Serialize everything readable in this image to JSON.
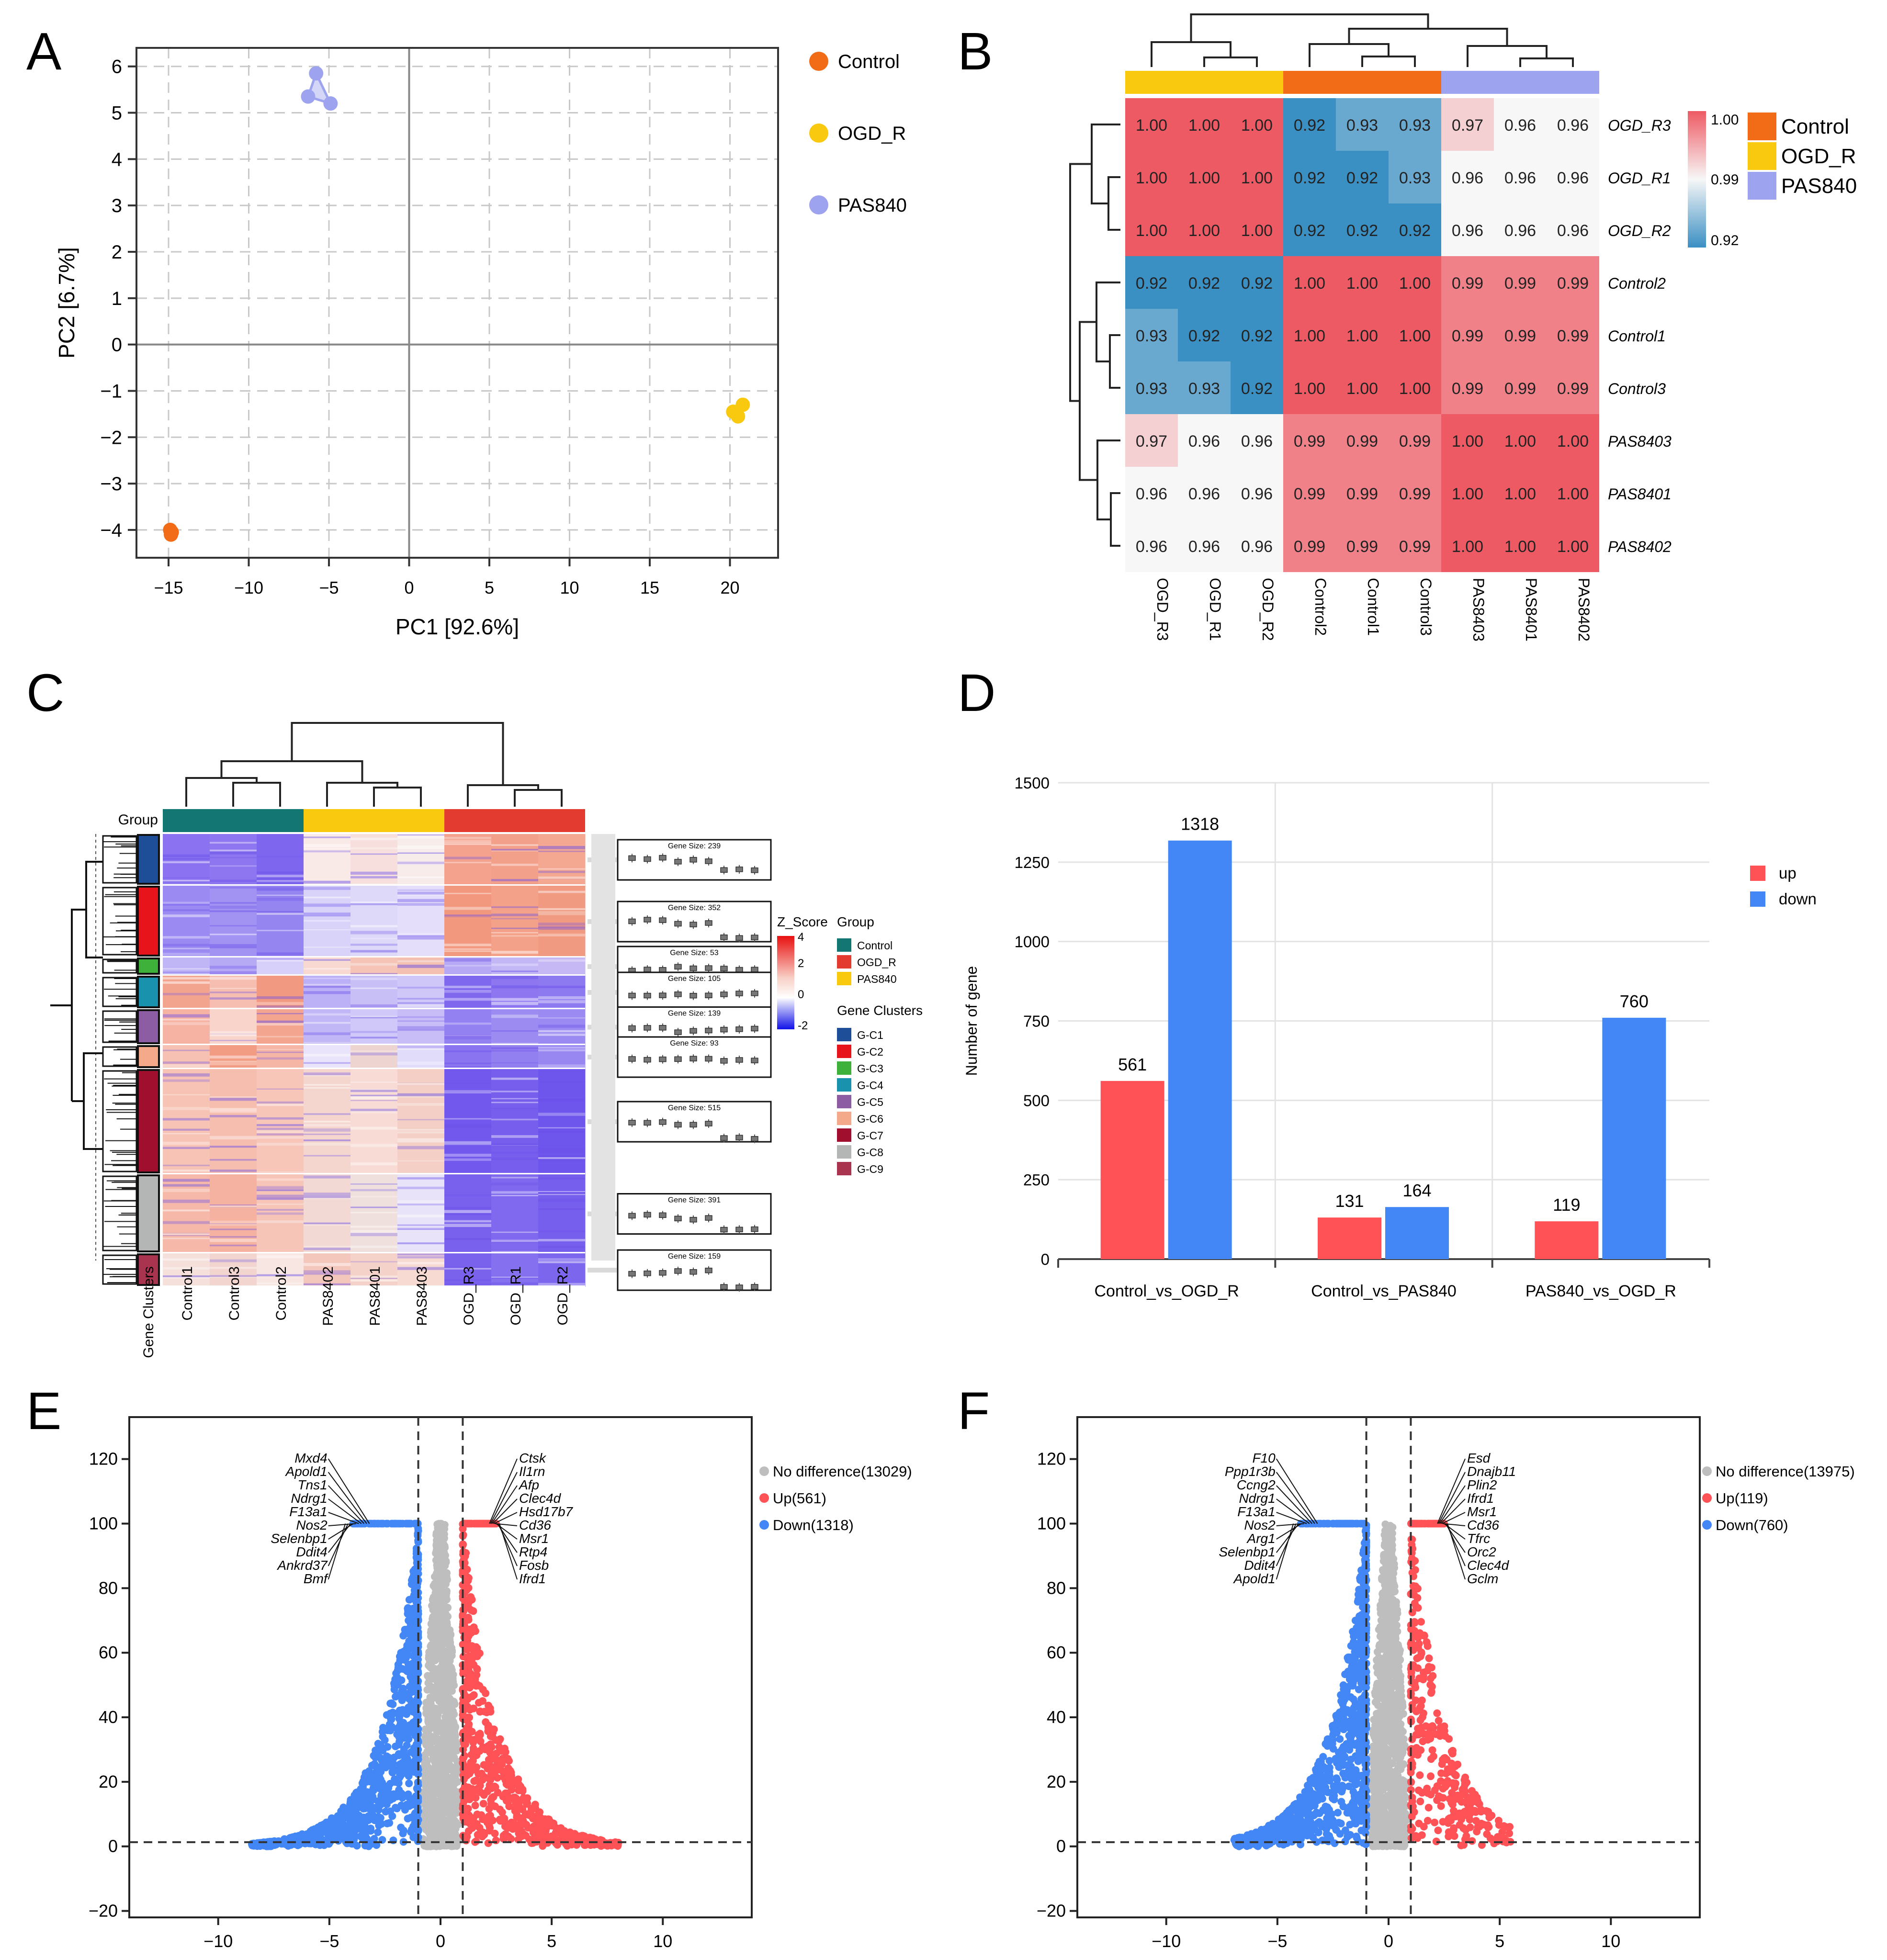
{
  "colors": {
    "control": "#F26B16",
    "ogd_r": "#F9C910",
    "pas840": "#9DA3EE",
    "heat_high": "#EE5A63",
    "heat_mid": "#F7F7F7",
    "heat_low": "#3A8FC3",
    "up": "#FF5256",
    "down": "#4287F5",
    "nodiff": "#BEBEBE",
    "grid": "#C8C8C8"
  },
  "panels": {
    "A": "A",
    "B": "B",
    "C": "C",
    "D": "D",
    "E": "E",
    "F": "F"
  },
  "chart_data": [
    {
      "id": "A",
      "type": "scatter",
      "xlabel": "PC1 [92.6%]",
      "ylabel": "PC2 [6.7%]",
      "xlim": [
        -17,
        23
      ],
      "ylim": [
        -4.6,
        6.4
      ],
      "xticks": [
        -15,
        -10,
        -5,
        0,
        5,
        10,
        15,
        20
      ],
      "yticks": [
        -4,
        -3,
        -2,
        -1,
        0,
        1,
        2,
        3,
        4,
        5,
        6
      ],
      "legend": [
        {
          "label": "Control",
          "color": "#F26B16"
        },
        {
          "label": "OGD_R",
          "color": "#F9C910"
        },
        {
          "label": "PAS840",
          "color": "#9DA3EE"
        }
      ],
      "groups": [
        {
          "name": "Control",
          "color": "#F26B16",
          "points": [
            [
              -14.9,
              -4.0
            ],
            [
              -14.8,
              -4.05
            ],
            [
              -14.85,
              -4.1
            ]
          ]
        },
        {
          "name": "OGD_R",
          "color": "#F9C910",
          "points": [
            [
              20.8,
              -1.3
            ],
            [
              20.2,
              -1.45
            ],
            [
              20.5,
              -1.55
            ]
          ]
        },
        {
          "name": "PAS840",
          "color": "#9DA3EE",
          "points": [
            [
              -5.8,
              5.85
            ],
            [
              -6.3,
              5.35
            ],
            [
              -4.9,
              5.2
            ]
          ]
        }
      ]
    },
    {
      "id": "B",
      "type": "heatmap",
      "rows": [
        "OGD_R3",
        "OGD_R1",
        "OGD_R2",
        "Control2",
        "Control1",
        "Control3",
        "PAS8403",
        "PAS8401",
        "PAS8402"
      ],
      "cols": [
        "OGD_R3",
        "OGD_R1",
        "OGD_R2",
        "Control2",
        "Control1",
        "Control3",
        "PAS8403",
        "PAS8401",
        "PAS8402"
      ],
      "col_groups": [
        "OGD_R",
        "OGD_R",
        "OGD_R",
        "Control",
        "Control",
        "Control",
        "PAS840",
        "PAS840",
        "PAS840"
      ],
      "values": [
        [
          1.0,
          1.0,
          1.0,
          0.92,
          0.93,
          0.93,
          0.97,
          0.96,
          0.96
        ],
        [
          1.0,
          1.0,
          1.0,
          0.92,
          0.92,
          0.93,
          0.96,
          0.96,
          0.96
        ],
        [
          1.0,
          1.0,
          1.0,
          0.92,
          0.92,
          0.92,
          0.96,
          0.96,
          0.96
        ],
        [
          0.92,
          0.92,
          0.92,
          1.0,
          1.0,
          1.0,
          0.99,
          0.99,
          0.99
        ],
        [
          0.93,
          0.92,
          0.92,
          1.0,
          1.0,
          1.0,
          0.99,
          0.99,
          0.99
        ],
        [
          0.93,
          0.93,
          0.92,
          1.0,
          1.0,
          1.0,
          0.99,
          0.99,
          0.99
        ],
        [
          0.97,
          0.96,
          0.96,
          0.99,
          0.99,
          0.99,
          1.0,
          1.0,
          1.0
        ],
        [
          0.96,
          0.96,
          0.96,
          0.99,
          0.99,
          0.99,
          1.0,
          1.0,
          1.0
        ],
        [
          0.96,
          0.96,
          0.96,
          0.99,
          0.99,
          0.99,
          1.0,
          1.0,
          1.0
        ]
      ],
      "scale": {
        "min": 0.92,
        "max": 1.0,
        "ticks": [
          "1.00",
          "0.99",
          "0.92"
        ]
      },
      "legend": [
        {
          "label": "Control",
          "color": "#F26B16"
        },
        {
          "label": "OGD_R",
          "color": "#F9C910"
        },
        {
          "label": "PAS840",
          "color": "#9DA3EE"
        }
      ]
    },
    {
      "id": "C",
      "type": "heatmap",
      "group_label": "Group",
      "row_annotation_label": "Gene Clusters",
      "columns": [
        "Control1",
        "Control3",
        "Control2",
        "PAS8402",
        "PAS8401",
        "PAS8403",
        "OGD_R3",
        "OGD_R1",
        "OGD_R2"
      ],
      "column_group_colors": [
        "#147673",
        "#F9C910",
        "#E33B30"
      ],
      "zscore_label": "Z_Score",
      "zscore_ticks": [
        "4",
        "2",
        "0",
        "-2"
      ],
      "legend_group_title": "Group",
      "legend_groups": [
        {
          "label": "Control",
          "color": "#147673"
        },
        {
          "label": "OGD_R",
          "color": "#E33B30"
        },
        {
          "label": "PAS840",
          "color": "#F9C910"
        }
      ],
      "legend_clusters_title": "Gene Clusters",
      "clusters": [
        {
          "label": "G-C1",
          "color": "#1F4E99",
          "gene_size": 239,
          "profile": [
            0.55,
            0.4,
            -0.3
          ]
        },
        {
          "label": "G-C2",
          "color": "#E8141C",
          "gene_size": 352,
          "profile": [
            0.55,
            0.3,
            -0.7
          ]
        },
        {
          "label": "G-C3",
          "color": "#3EB13A",
          "gene_size": 53,
          "profile": [
            0.2,
            0.4,
            0.3
          ]
        },
        {
          "label": "G-C4",
          "color": "#1892AD",
          "gene_size": 105,
          "profile": [
            0.3,
            0.3,
            0.35
          ]
        },
        {
          "label": "G-C5",
          "color": "#8C5DA3",
          "gene_size": 139,
          "profile": [
            0.45,
            0.15,
            0.3
          ]
        },
        {
          "label": "G-C6",
          "color": "#F4A98A",
          "gene_size": 93,
          "profile": [
            0.3,
            0.3,
            0.25
          ]
        },
        {
          "label": "G-C7",
          "color": "#A0102E",
          "gene_size": 515,
          "profile": [
            0.45,
            0.3,
            -0.75
          ]
        },
        {
          "label": "G-C8",
          "color": "#B4B6B6",
          "gene_size": 391,
          "profile": [
            0.4,
            0.1,
            -0.75
          ]
        },
        {
          "label": "G-C9",
          "color": "#A9344F",
          "gene_size": 159,
          "profile": [
            0.2,
            0.4,
            -0.8
          ]
        }
      ],
      "gene_size_prefix": "Gene Size: "
    },
    {
      "id": "D",
      "type": "bar",
      "categories": [
        "Control_vs_OGD_R",
        "Control_vs_PAS840",
        "PAS840_vs_OGD_R"
      ],
      "series": [
        {
          "name": "up",
          "color": "#FF5256",
          "values": [
            561,
            131,
            119
          ]
        },
        {
          "name": "down",
          "color": "#4287F5",
          "values": [
            1318,
            164,
            760
          ]
        }
      ],
      "ylabel": "Number of gene",
      "ylim": [
        0,
        1500
      ],
      "yticks": [
        0,
        250,
        500,
        750,
        1000,
        1250,
        1500
      ]
    },
    {
      "id": "E",
      "type": "scatter",
      "xlim": [
        -14,
        14
      ],
      "ylim": [
        -22,
        133
      ],
      "xticks": [
        -10,
        -5,
        0,
        5,
        10
      ],
      "yticks": [
        -20,
        0,
        20,
        40,
        60,
        80,
        100,
        120
      ],
      "vlines": [
        -1,
        1
      ],
      "hline": 1.3,
      "legend": [
        {
          "label": "No difference(13029)",
          "color": "#BEBEBE"
        },
        {
          "label": "Up(561)",
          "color": "#FF5256"
        },
        {
          "label": "Down(1318)",
          "color": "#4287F5"
        }
      ],
      "down_spread": 7.5,
      "up_spread": 7,
      "seed": 11,
      "left_genes": [
        "Mxd4",
        "Apold1",
        "Tns1",
        "Ndrg1",
        "F13a1",
        "Nos2",
        "Selenbp1",
        "Ddit4",
        "Ankrd37",
        "Bmf"
      ],
      "right_genes": [
        "Ctsk",
        "Il1rn",
        "Afp",
        "Clec4d",
        "Hsd17b7",
        "Cd36",
        "Msr1",
        "Rtp4",
        "Fosb",
        "Ifrd1"
      ]
    },
    {
      "id": "F",
      "type": "scatter",
      "xlim": [
        -14,
        14
      ],
      "ylim": [
        -22,
        133
      ],
      "xticks": [
        -10,
        -5,
        0,
        5,
        10
      ],
      "yticks": [
        -20,
        0,
        20,
        40,
        60,
        80,
        100,
        120
      ],
      "vlines": [
        -1,
        1
      ],
      "hline": 1.3,
      "legend": [
        {
          "label": "No difference(13975)",
          "color": "#BEBEBE"
        },
        {
          "label": "Up(119)",
          "color": "#FF5256"
        },
        {
          "label": "Down(760)",
          "color": "#4287F5"
        }
      ],
      "down_spread": 6,
      "up_spread": 4.5,
      "seed": 29,
      "left_genes": [
        "F10",
        "Ppp1r3b",
        "Ccng2",
        "Ndrg1",
        "F13a1",
        "Nos2",
        "Arg1",
        "Selenbp1",
        "Ddit4",
        "Apold1"
      ],
      "right_genes": [
        "Esd",
        "Dnajb11",
        "Plin2",
        "Ifrd1",
        "Msr1",
        "Cd36",
        "Tfrc",
        "Orc2",
        "Clec4d",
        "Gclm"
      ]
    }
  ]
}
